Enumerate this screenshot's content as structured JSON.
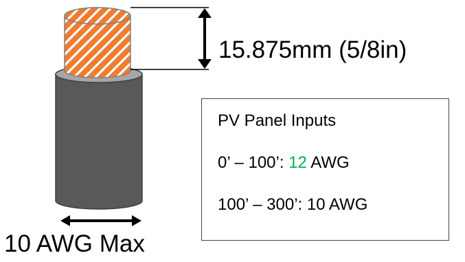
{
  "dimension_label": "15.875mm (5/8in)",
  "max_gauge_label": "10 AWG Max",
  "inputs_box": {
    "title": "PV Panel Inputs",
    "row1": {
      "range": "0’ – 100’: ",
      "gauge_value": "12",
      "unit": " AWG"
    },
    "row2": "100’ – 300’: 10 AWG"
  },
  "colors": {
    "jacket": "#595959",
    "jacket_edge": "#404040",
    "insulation_top": "#a6a6a6",
    "conductor_fill": "#ed7d31",
    "conductor_stripe": "#ffffff",
    "conductor_edge": "#7f7f7f",
    "arrow": "#000000",
    "highlight": "#00b050"
  },
  "icons": {
    "cable": "wire-cable-icon",
    "height_arrow": "vertical-dimension-arrow",
    "width_arrow": "horizontal-dimension-arrow"
  }
}
